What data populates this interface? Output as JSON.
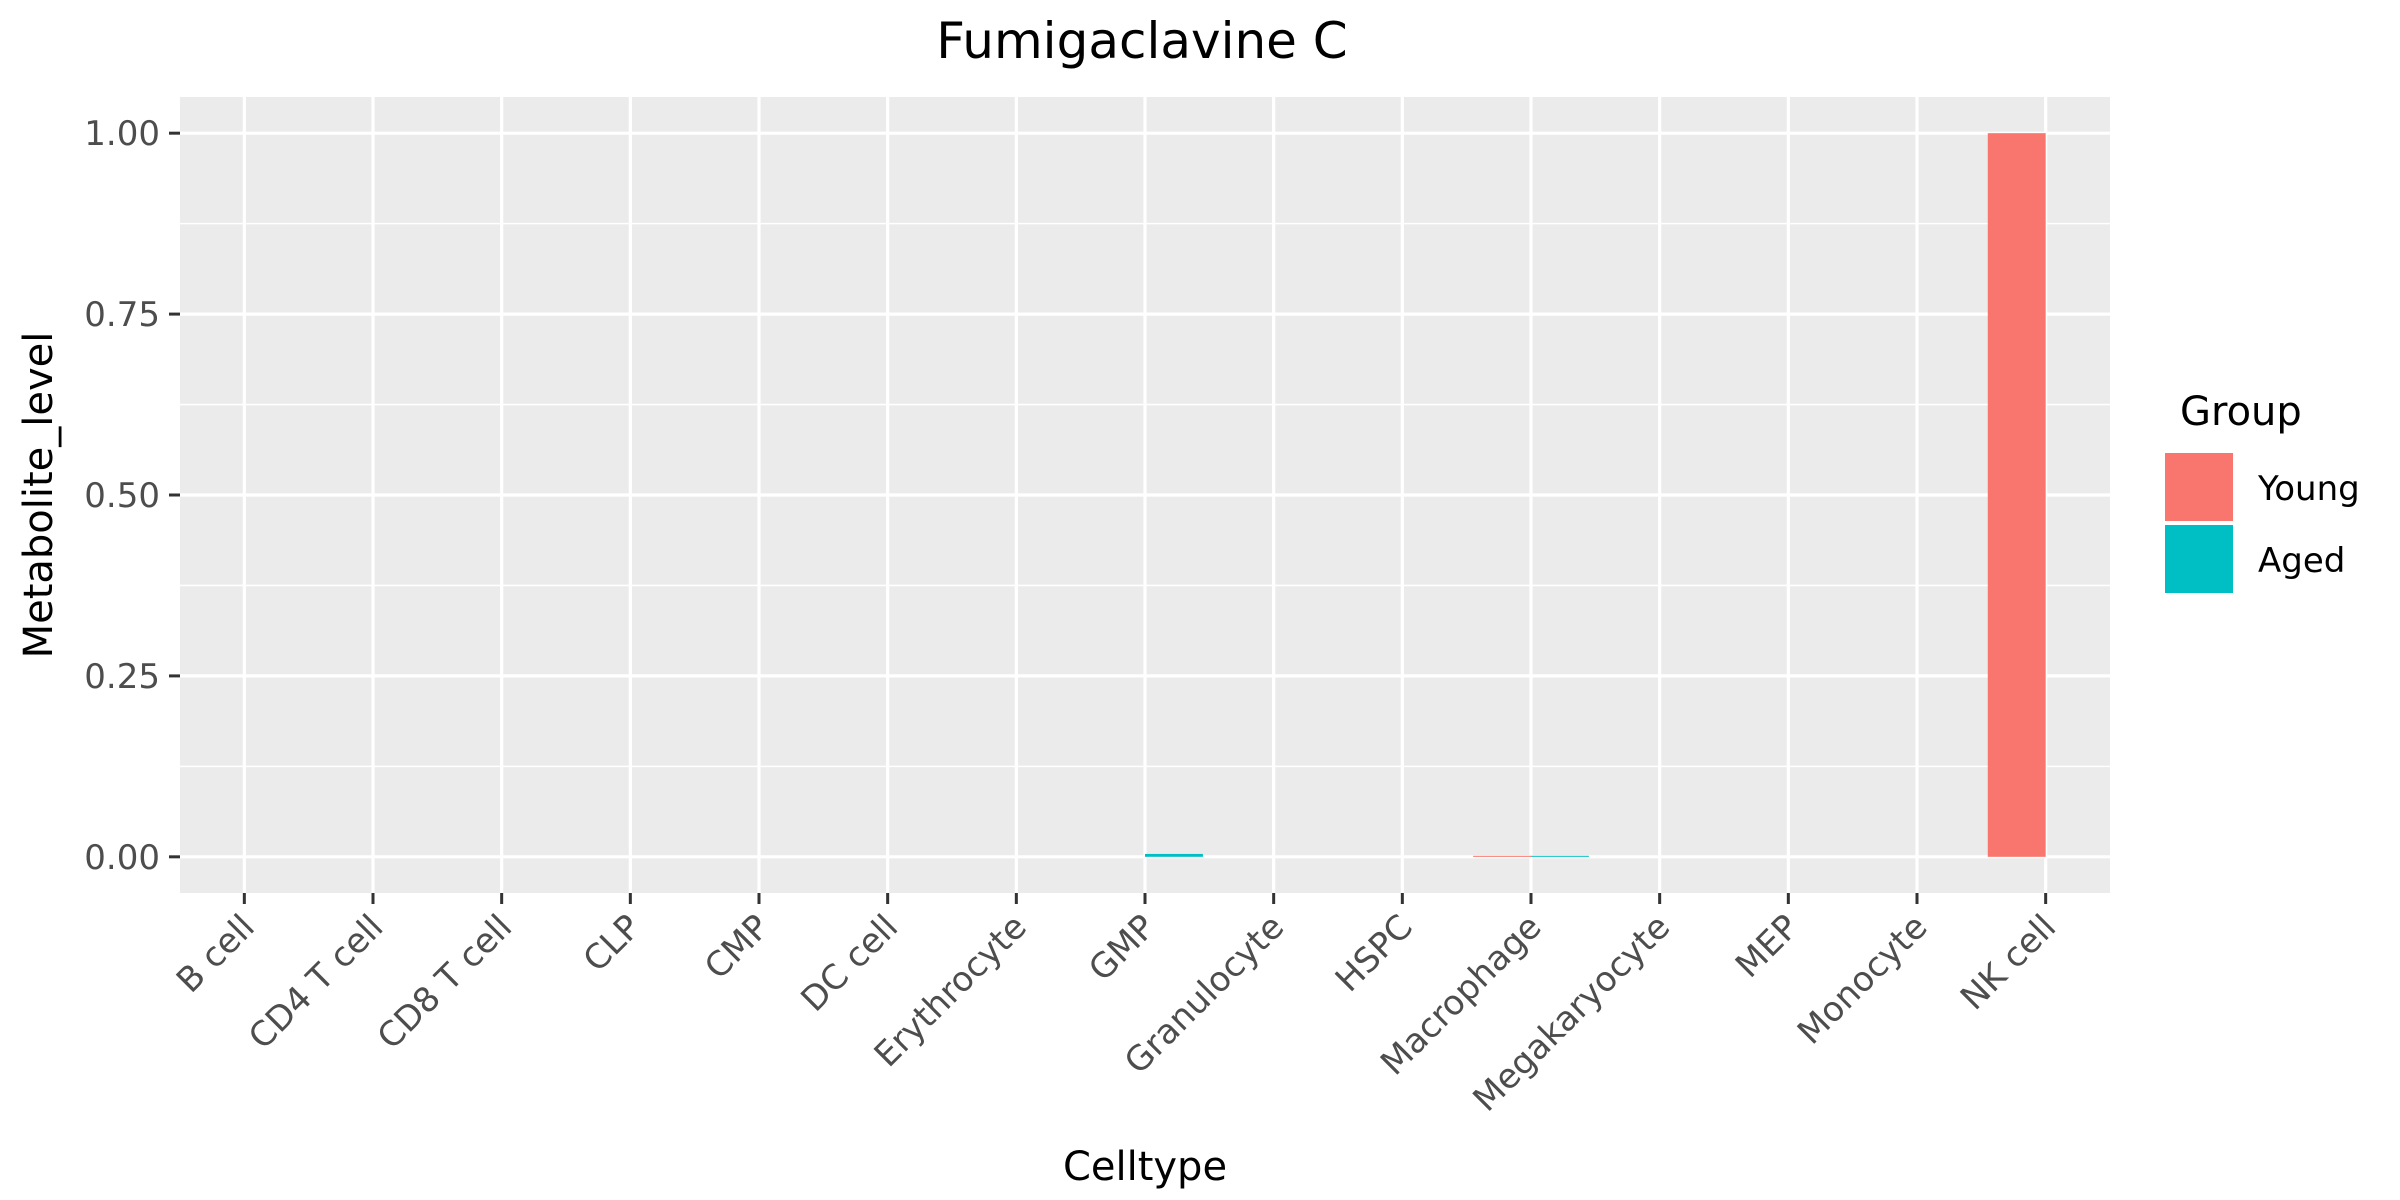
{
  "chart_data": {
    "type": "bar",
    "title": "Fumigaclavine C",
    "xlabel": "Celltype",
    "ylabel": "Metabolite_level",
    "ylim": [
      -0.05,
      1.05
    ],
    "yticks": [
      0.0,
      0.25,
      0.5,
      0.75,
      1.0
    ],
    "ytick_labels": [
      "0.00",
      "0.25",
      "0.50",
      "0.75",
      "1.00"
    ],
    "grid": true,
    "legend_position": "right",
    "legend_title": "Group",
    "categories": [
      "B cell",
      "CD4 T cell",
      "CD8 T cell",
      "CLP",
      "CMP",
      "DC cell",
      "Erythrocyte",
      "GMP",
      "Granulocyte",
      "HSPC",
      "Macrophage",
      "Megakaryocyte",
      "MEP",
      "Monocyte",
      "NK cell"
    ],
    "series": [
      {
        "name": "Young",
        "color": "#F8766D",
        "values": [
          0,
          0,
          0,
          0,
          0,
          0,
          0,
          0,
          0,
          0,
          0.001,
          0,
          0,
          0,
          1.0
        ]
      },
      {
        "name": "Aged",
        "color": "#00BFC4",
        "values": [
          0,
          0,
          0,
          0,
          0,
          0,
          0,
          0.004,
          0,
          0,
          0.001,
          0,
          0,
          0,
          0
        ]
      }
    ],
    "panel_color": "#EBEBEB",
    "grid_color": "#FFFFFF"
  }
}
